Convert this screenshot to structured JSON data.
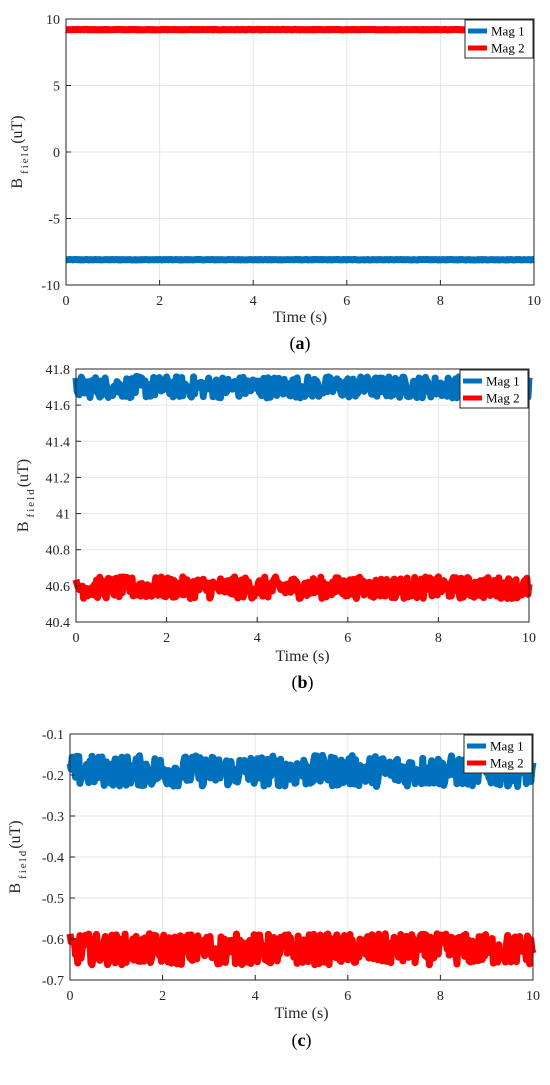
{
  "chart_data": [
    {
      "type": "line",
      "caption": {
        "open": "(",
        "letter": "a",
        "close": ")"
      },
      "xlabel": "Time (s)",
      "ylabel_main": "B",
      "ylabel_sub": "field",
      "ylabel_unit": "(uT)",
      "xlim": [
        0,
        10
      ],
      "ylim": [
        -10,
        10
      ],
      "xticks": [
        0,
        2,
        4,
        6,
        8,
        10
      ],
      "yticks": [
        -10,
        -5,
        0,
        5,
        10
      ],
      "yticklabels": [
        "-10",
        "-5",
        "0",
        "5",
        "10"
      ],
      "grid": true,
      "legend_position": "top-right",
      "series": [
        {
          "name": "Mag 1",
          "color": "#0072BD",
          "mean": -8.1,
          "noise": 0.02
        },
        {
          "name": "Mag 2",
          "color": "#FF0000",
          "mean": 9.2,
          "noise": 0.02
        }
      ]
    },
    {
      "type": "line",
      "caption": {
        "open": "(",
        "letter": "b",
        "close": ")"
      },
      "xlabel": "Time (s)",
      "ylabel_main": "B",
      "ylabel_sub": "field",
      "ylabel_unit": "(uT)",
      "xlim": [
        0,
        10
      ],
      "ylim": [
        40.4,
        41.8
      ],
      "xticks": [
        0,
        2,
        4,
        6,
        8,
        10
      ],
      "yticks": [
        40.4,
        40.6,
        40.8,
        41,
        41.2,
        41.4,
        41.6,
        41.8
      ],
      "yticklabels": [
        "40.4",
        "40.6",
        "40.8",
        "41",
        "41.2",
        "41.4",
        "41.6",
        "41.8"
      ],
      "grid": true,
      "legend_position": "top-right",
      "series": [
        {
          "name": "Mag 1",
          "color": "#0072BD",
          "mean": 41.7,
          "noise": 0.06
        },
        {
          "name": "Mag 2",
          "color": "#FF0000",
          "mean": 40.59,
          "noise": 0.06
        }
      ]
    },
    {
      "type": "line",
      "caption": {
        "open": "(",
        "letter": "c",
        "close": ")"
      },
      "xlabel": "Time (s)",
      "ylabel_main": "B",
      "ylabel_sub": "field",
      "ylabel_unit": "(uT)",
      "xlim": [
        0,
        10
      ],
      "ylim": [
        -0.7,
        -0.1
      ],
      "xticks": [
        0,
        2,
        4,
        6,
        8,
        10
      ],
      "yticks": [
        -0.7,
        -0.6,
        -0.5,
        -0.4,
        -0.3,
        -0.2,
        -0.1
      ],
      "yticklabels": [
        "-0.7",
        "-0.6",
        "-0.5",
        "-0.4",
        "-0.3",
        "-0.2",
        "-0.1"
      ],
      "grid": true,
      "legend_position": "top-right",
      "series": [
        {
          "name": "Mag 1",
          "color": "#0072BD",
          "mean": -0.19,
          "noise": 0.038
        },
        {
          "name": "Mag 2",
          "color": "#FF0000",
          "mean": -0.625,
          "noise": 0.038
        }
      ]
    }
  ]
}
